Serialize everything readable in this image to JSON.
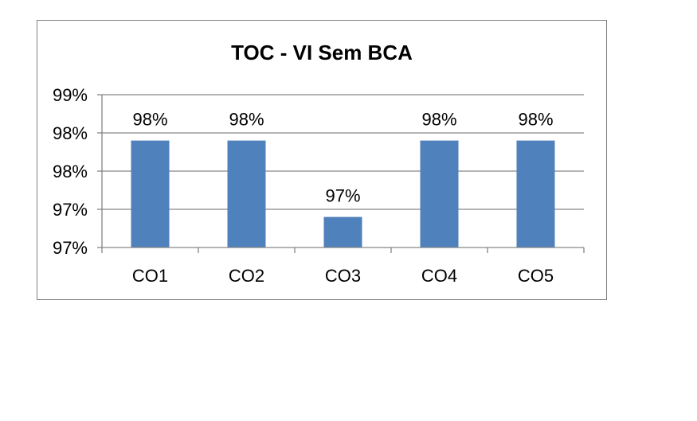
{
  "chart_data": {
    "type": "bar",
    "title": "TOC - VI Sem BCA",
    "xlabel": "",
    "ylabel": "",
    "categories": [
      "CO1",
      "CO2",
      "CO3",
      "CO4",
      "CO5"
    ],
    "values": [
      0.98,
      0.98,
      0.97,
      0.98,
      0.98
    ],
    "data_labels": [
      "98%",
      "98%",
      "97%",
      "98%",
      "98%"
    ],
    "ylim": [
      0.966,
      0.986
    ],
    "y_ticks": [
      0.966,
      0.971,
      0.976,
      0.981,
      0.986
    ],
    "y_tick_labels": [
      "97%",
      "97%",
      "98%",
      "98%",
      "99%"
    ],
    "grid": true,
    "legend": "none",
    "bar_color": "#4f81bd"
  }
}
